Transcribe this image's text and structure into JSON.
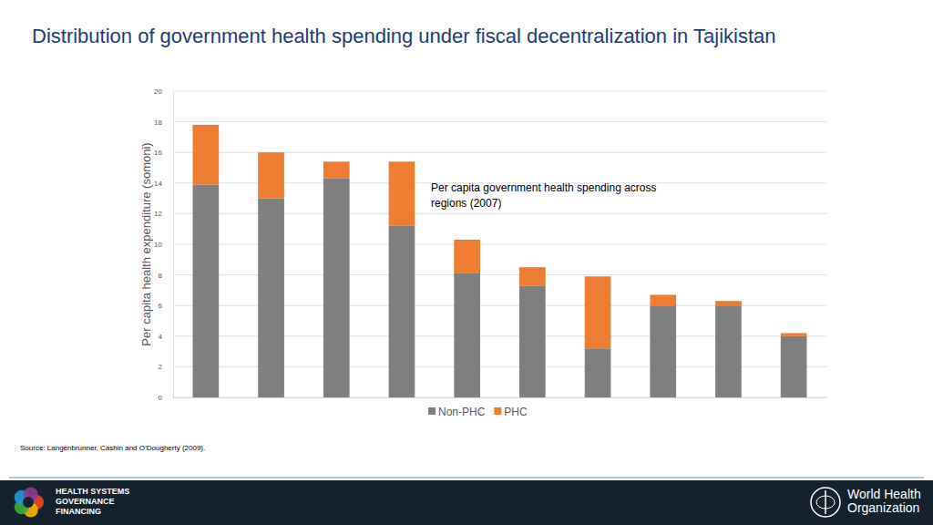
{
  "chart_data": {
    "type": "bar",
    "stacked": true,
    "title": "Distribution of government health spending under fiscal decentralization in Tajikistan",
    "y_label": "Per capita health expenditure (somoni)",
    "annotation": [
      "Per capita government health spending across",
      "regions (2007)"
    ],
    "source": "Source:  Langenbrunner, Cashin and O’Dougherty (2009).",
    "footer_left": [
      "HEALTH SYSTEMS",
      "GOVERNANCE",
      "FINANCING"
    ],
    "footer_right": [
      "World Health",
      "Organization"
    ],
    "categories": [
      null,
      null,
      null,
      null,
      null,
      null,
      null,
      null,
      null,
      null
    ],
    "series": [
      {
        "name": "Non-PHC",
        "color": "#7f7f7f",
        "values": [
          13.9,
          13.0,
          14.3,
          11.2,
          8.1,
          7.3,
          3.2,
          6.0,
          6.0,
          4.0
        ]
      },
      {
        "name": "PHC",
        "color": "#ed7d31",
        "values": [
          3.9,
          3.0,
          1.1,
          4.2,
          2.2,
          1.2,
          4.7,
          0.7,
          0.3,
          0.2
        ]
      }
    ],
    "ylim": [
      0,
      20
    ],
    "yticks": [
      0,
      2,
      4,
      6,
      8,
      10,
      12,
      14,
      16,
      18,
      20
    ],
    "grid": true,
    "legend": "bottom",
    "tick_labels": "y"
  }
}
